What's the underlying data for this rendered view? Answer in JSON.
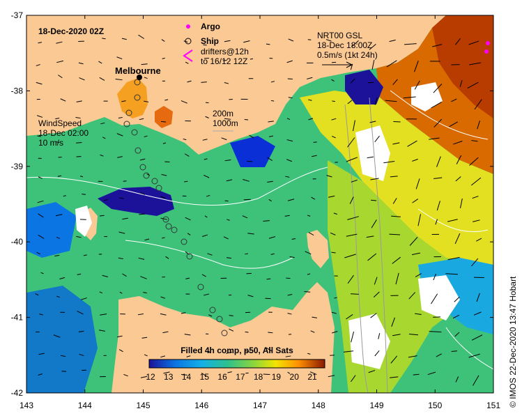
{
  "title": "18-Dec-2020 02Z",
  "city_label": "Melbourne",
  "legend": {
    "argo_label": "Argo",
    "ship_label": "Ship",
    "drifters_line1": "drifters@12h",
    "drifters_line2": "to 16/12 12Z",
    "argo_color": "#ff00ff",
    "drifter_color": "#ff00ff"
  },
  "current_ref": {
    "line1": "NRT00 GSL",
    "line2": "18-Dec 18:00Z",
    "line3": "0.5m/s (1kt 24h)"
  },
  "wind_ref": {
    "line1": "WindSpeed",
    "line2": "18-Dec 02:00",
    "line3": "10 m/s"
  },
  "depth_legend": {
    "line1": "200m",
    "line2": "1000m"
  },
  "colorbar": {
    "title": "Filled 4h comp, p50, All Sats",
    "ticks": [
      "12",
      "13",
      "14",
      "15",
      "16",
      "17",
      "18",
      "19",
      "20",
      "21"
    ],
    "colors": [
      "#1b1299",
      "#0a2fd6",
      "#0b75e3",
      "#13b0e6",
      "#1cc6a8",
      "#39c46b",
      "#7fd13a",
      "#c6df28",
      "#f2e400",
      "#ffc000",
      "#ff8800",
      "#e65500",
      "#b82a00",
      "#8a1a00"
    ]
  },
  "x_ticks": [
    "143",
    "144",
    "145",
    "146",
    "147",
    "148",
    "149",
    "150",
    "151"
  ],
  "y_ticks": [
    "-37",
    "-38",
    "-39",
    "-40",
    "-41",
    "-42"
  ],
  "credit": "IMOS 22-Dec-2020 13:47 Hobart",
  "colors": {
    "land": "#fbc994",
    "frame": "#000000",
    "contour": "#ffffff",
    "bathy": "#aaaaaa"
  }
}
